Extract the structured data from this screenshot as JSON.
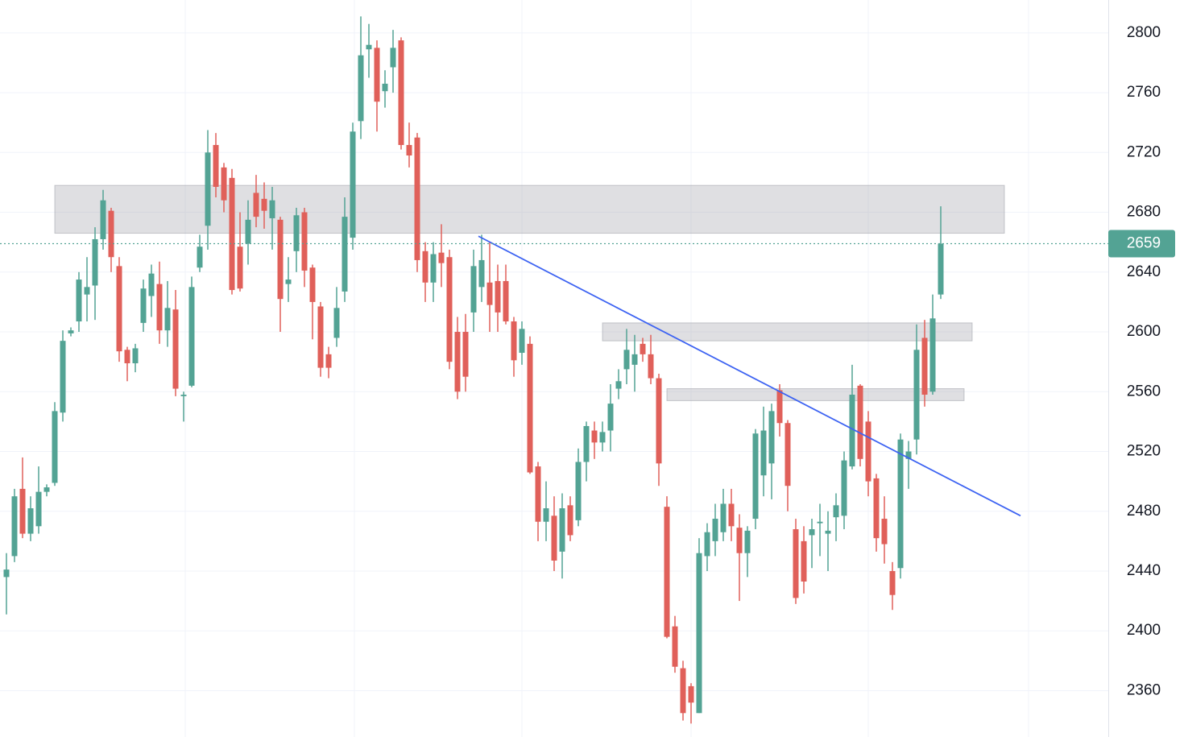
{
  "chart_data": {
    "type": "candlestick",
    "ylim": [
      2329,
      2822
    ],
    "yticks": [
      2360,
      2400,
      2440,
      2480,
      2520,
      2560,
      2600,
      2640,
      2680,
      2720,
      2760,
      2800
    ],
    "grid": true,
    "up_color": "#53a394",
    "down_color": "#e0605a",
    "last_price": 2659,
    "series": [
      {
        "open": [
          2436,
          2450,
          2495,
          2465,
          2470,
          2493,
          2499,
          2546,
          2599,
          2607,
          2625,
          2631,
          2662,
          2681,
          2644,
          2588,
          2579,
          2606,
          2624,
          2632,
          2601,
          2615,
          2557,
          2564,
          2643,
          2671,
          2725,
          2710,
          2703,
          2657,
          2659,
          2693,
          2689,
          2676,
          2675,
          2632,
          2654,
          2680,
          2643,
          2617,
          2585,
          2596,
          2627,
          2663,
          2741,
          2789,
          2790,
          2761,
          2777,
          2795,
          2725,
          2730,
          2654,
          2633,
          2653,
          2650,
          2600,
          2600,
          2613,
          2630,
          2633,
          2634,
          2634,
          2607,
          2586,
          2592,
          2510,
          2473,
          2477,
          2453,
          2484,
          2474,
          2513,
          2534,
          2526,
          2534,
          2562,
          2575,
          2578,
          2592,
          2585,
          2569,
          2483,
          2403,
          2375,
          2363,
          2345,
          2450,
          2460,
          2466,
          2485,
          2469,
          2452,
          2475,
          2504,
          2512,
          2561,
          2539,
          2468,
          2460,
          2464,
          2472,
          2465,
          2476,
          2477,
          2510,
          2564,
          2540,
          2502,
          2475,
          2440,
          2442,
          2515,
          2528,
          2596,
          2560,
          2625
        ],
        "high": [
          2452,
          2495,
          2516,
          2490,
          2510,
          2498,
          2553,
          2601,
          2603,
          2640,
          2650,
          2670,
          2695,
          2683,
          2650,
          2590,
          2592,
          2635,
          2645,
          2647,
          2634,
          2628,
          2560,
          2637,
          2665,
          2735,
          2733,
          2713,
          2709,
          2680,
          2688,
          2705,
          2700,
          2697,
          2677,
          2650,
          2683,
          2683,
          2645,
          2620,
          2590,
          2630,
          2690,
          2740,
          2811,
          2806,
          2795,
          2775,
          2802,
          2797,
          2740,
          2733,
          2660,
          2660,
          2672,
          2655,
          2610,
          2612,
          2655,
          2665,
          2660,
          2645,
          2645,
          2610,
          2607,
          2597,
          2513,
          2500,
          2490,
          2492,
          2490,
          2522,
          2540,
          2540,
          2540,
          2565,
          2575,
          2602,
          2598,
          2596,
          2598,
          2572,
          2490,
          2410,
          2380,
          2365,
          2462,
          2472,
          2485,
          2495,
          2495,
          2478,
          2470,
          2535,
          2550,
          2552,
          2565,
          2541,
          2475,
          2470,
          2475,
          2485,
          2480,
          2492,
          2520,
          2578,
          2565,
          2547,
          2505,
          2490,
          2446,
          2532,
          2527,
          2605,
          2608,
          2625,
          2684
        ],
        "low": [
          2411,
          2446,
          2462,
          2460,
          2465,
          2490,
          2497,
          2540,
          2597,
          2600,
          2607,
          2608,
          2655,
          2640,
          2580,
          2567,
          2573,
          2600,
          2610,
          2592,
          2590,
          2557,
          2540,
          2563,
          2640,
          2655,
          2690,
          2680,
          2625,
          2627,
          2645,
          2670,
          2669,
          2655,
          2600,
          2620,
          2640,
          2630,
          2595,
          2570,
          2569,
          2590,
          2620,
          2655,
          2729,
          2770,
          2734,
          2750,
          2760,
          2722,
          2710,
          2640,
          2620,
          2620,
          2630,
          2575,
          2555,
          2560,
          2600,
          2620,
          2600,
          2600,
          2605,
          2570,
          2578,
          2505,
          2460,
          2460,
          2440,
          2435,
          2460,
          2470,
          2500,
          2515,
          2520,
          2520,
          2555,
          2565,
          2560,
          2580,
          2565,
          2497,
          2395,
          2372,
          2340,
          2338,
          2345,
          2440,
          2450,
          2460,
          2460,
          2420,
          2436,
          2468,
          2490,
          2488,
          2530,
          2480,
          2418,
          2425,
          2442,
          2450,
          2440,
          2460,
          2468,
          2508,
          2510,
          2490,
          2453,
          2445,
          2414,
          2435,
          2495,
          2518,
          2550,
          2558,
          2622
        ],
        "close": [
          2441,
          2490,
          2465,
          2482,
          2493,
          2496,
          2547,
          2594,
          2601,
          2635,
          2630,
          2662,
          2688,
          2650,
          2587,
          2579,
          2589,
          2629,
          2639,
          2601,
          2616,
          2562,
          2558,
          2630,
          2657,
          2720,
          2697,
          2688,
          2628,
          2629,
          2675,
          2677,
          2681,
          2688,
          2622,
          2635,
          2678,
          2641,
          2620,
          2576,
          2576,
          2616,
          2677,
          2734,
          2785,
          2792,
          2754,
          2766,
          2790,
          2725,
          2718,
          2648,
          2633,
          2652,
          2646,
          2580,
          2560,
          2570,
          2644,
          2648,
          2618,
          2613,
          2607,
          2581,
          2602,
          2506,
          2473,
          2482,
          2447,
          2482,
          2464,
          2513,
          2537,
          2526,
          2533,
          2552,
          2567,
          2588,
          2585,
          2585,
          2569,
          2512,
          2396,
          2376,
          2345,
          2352,
          2452,
          2466,
          2475,
          2485,
          2470,
          2452,
          2467,
          2532,
          2534,
          2547,
          2539,
          2497,
          2422,
          2433,
          2468,
          2473,
          2467,
          2484,
          2514,
          2558,
          2515,
          2500,
          2462,
          2458,
          2424,
          2528,
          2520,
          2588,
          2558,
          2609,
          2659
        ]
      }
    ],
    "zones": [
      {
        "range": [
          2666,
          2698
        ],
        "span": [
          6,
          123.9
        ]
      },
      {
        "range": [
          2594,
          2606
        ],
        "span": [
          74,
          119.9
        ]
      },
      {
        "range": [
          2554,
          2562
        ],
        "span": [
          82,
          118.9
        ]
      }
    ],
    "trendline": {
      "from": [
        58.6,
        2664
      ],
      "to": [
        125.9,
        2477
      ]
    }
  }
}
